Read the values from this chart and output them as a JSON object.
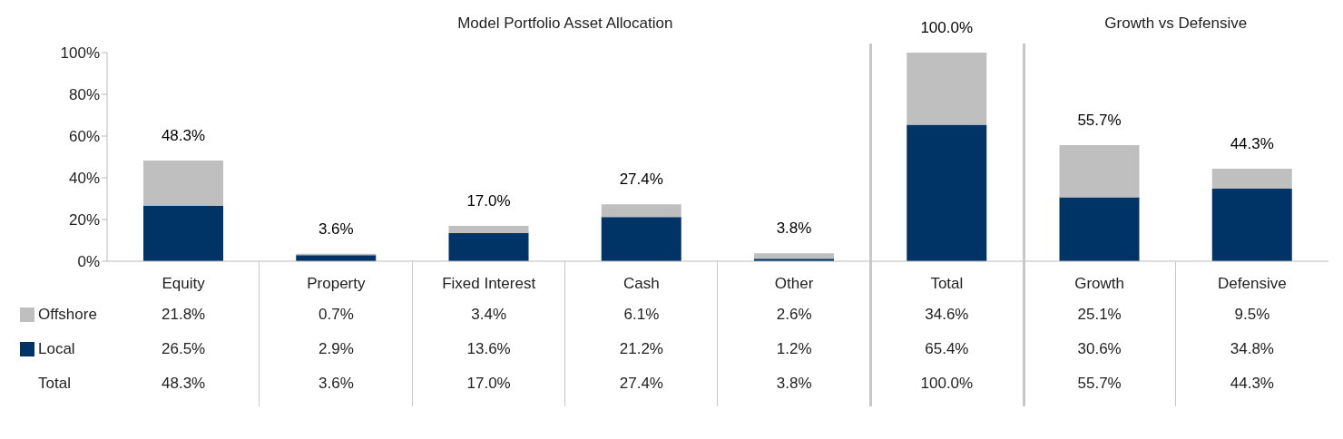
{
  "chart_data": {
    "type": "bar",
    "title": "Model Portfolio Asset Allocation",
    "annotations": [
      "Growth vs Defensive",
      "Total"
    ],
    "categories": [
      "Equity",
      "Property",
      "Fixed Interest",
      "Cash",
      "Other",
      "Total",
      "Growth",
      "Defensive"
    ],
    "stacked": true,
    "series": [
      {
        "name": "Local",
        "color": "#003366",
        "values": [
          26.5,
          2.9,
          13.6,
          21.2,
          1.2,
          65.4,
          30.6,
          34.8
        ],
        "value_labels": [
          "26.5%",
          "2.9%",
          "13.6%",
          "21.2%",
          "1.2%",
          "65.4%",
          "30.6%",
          "34.8%"
        ]
      },
      {
        "name": "Offshore",
        "color": "#bfbfbf",
        "values": [
          21.8,
          0.7,
          3.4,
          6.1,
          2.6,
          34.6,
          25.1,
          9.5
        ],
        "value_labels": [
          "21.8%",
          "0.7%",
          "3.4%",
          "6.1%",
          "2.6%",
          "34.6%",
          "25.1%",
          "9.5%"
        ]
      }
    ],
    "totals": [
      "48.3%",
      "3.6%",
      "17.0%",
      "27.4%",
      "3.8%",
      "100.0%",
      "55.7%",
      "44.3%"
    ],
    "ylim": [
      0,
      100
    ],
    "yticks": [
      {
        "value": 0,
        "label": "0%"
      },
      {
        "value": 20,
        "label": "20%"
      },
      {
        "value": 40,
        "label": "40%"
      },
      {
        "value": 60,
        "label": "60%"
      },
      {
        "value": 80,
        "label": "80%"
      },
      {
        "value": 100,
        "label": "100%"
      }
    ],
    "grid": false,
    "legend": "bottom left"
  }
}
